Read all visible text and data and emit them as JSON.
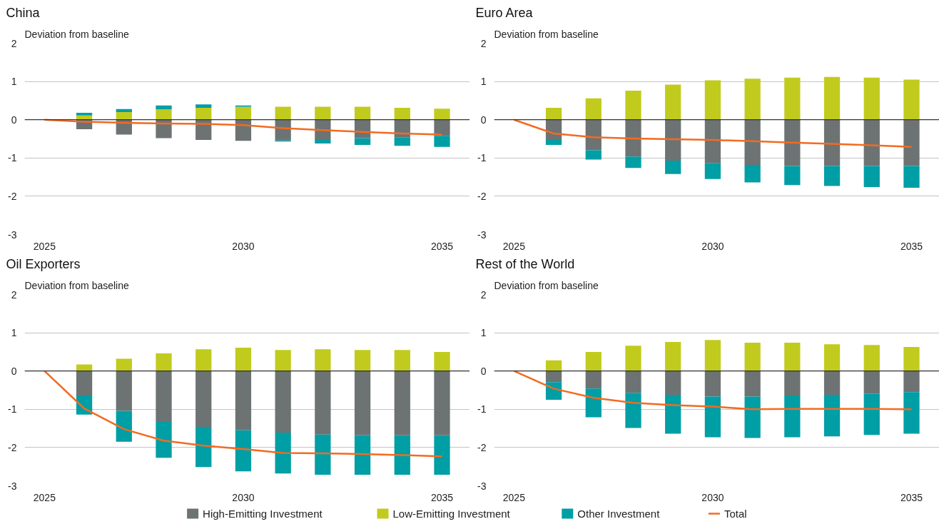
{
  "chart_data": [
    {
      "type": "bar",
      "stacked": true,
      "title": "China",
      "ylabel": "Deviation from baseline",
      "xlim": [
        2024.5,
        2035.7
      ],
      "xticks": [
        2025,
        2030,
        2035
      ],
      "ylim": [
        -3,
        2
      ],
      "yticks": [
        -3,
        -2,
        -1,
        0,
        1,
        2
      ],
      "grid": "y",
      "legend": "bottom",
      "ref_lines": [
        {
          "axis": "y",
          "value": 0,
          "color": "#333333"
        }
      ],
      "series": [
        {
          "name": "High-Emitting Investment",
          "color": "#6d7373",
          "x": [
            2026,
            2027,
            2028,
            2029,
            2030,
            2031,
            2032,
            2033,
            2034,
            2035
          ],
          "values": [
            -0.25,
            -0.39,
            -0.48,
            -0.53,
            -0.55,
            -0.54,
            -0.51,
            -0.48,
            -0.46,
            -0.42
          ]
        },
        {
          "name": "Low-Emitting Investment",
          "color": "#c1cb1e",
          "x": [
            2026,
            2027,
            2028,
            2029,
            2030,
            2031,
            2032,
            2033,
            2034,
            2035
          ],
          "values": [
            0.11,
            0.2,
            0.27,
            0.31,
            0.34,
            0.34,
            0.34,
            0.34,
            0.31,
            0.29
          ]
        },
        {
          "name": "Other Investment",
          "color": "#009ea5",
          "x": [
            2026,
            2027,
            2028,
            2029,
            2030,
            2031,
            2032,
            2033,
            2034,
            2035
          ],
          "values": [
            0.07,
            0.08,
            0.1,
            0.09,
            0.03,
            -0.03,
            -0.11,
            -0.18,
            -0.22,
            -0.29
          ]
        },
        {
          "name": "Total",
          "type": "line",
          "color": "#f26b21",
          "x": [
            2025,
            2026,
            2027,
            2028,
            2029,
            2030,
            2031,
            2032,
            2033,
            2034,
            2035
          ],
          "values": [
            0,
            -0.05,
            -0.08,
            -0.1,
            -0.11,
            -0.14,
            -0.22,
            -0.27,
            -0.32,
            -0.36,
            -0.39
          ]
        }
      ]
    },
    {
      "type": "bar",
      "stacked": true,
      "title": "Euro Area",
      "ylabel": "Deviation from baseline",
      "xlim": [
        2024.5,
        2035.7
      ],
      "xticks": [
        2025,
        2030,
        2035
      ],
      "ylim": [
        -3,
        2
      ],
      "yticks": [
        -3,
        -2,
        -1,
        0,
        1,
        2
      ],
      "grid": "y",
      "ref_lines": [
        {
          "axis": "y",
          "value": 0,
          "color": "#333333"
        }
      ],
      "series": [
        {
          "color": "#6d7373",
          "x": [
            2026,
            2027,
            2028,
            2029,
            2030,
            2031,
            2032,
            2033,
            2034,
            2035
          ],
          "values": [
            -0.51,
            -0.8,
            -0.96,
            -1.07,
            -1.13,
            -1.18,
            -1.21,
            -1.21,
            -1.21,
            -1.21
          ]
        },
        {
          "color": "#c1cb1e",
          "x": [
            2026,
            2027,
            2028,
            2029,
            2030,
            2031,
            2032,
            2033,
            2034,
            2035
          ],
          "values": [
            0.31,
            0.56,
            0.76,
            0.92,
            1.03,
            1.07,
            1.1,
            1.12,
            1.1,
            1.05
          ]
        },
        {
          "color": "#009ea5",
          "x": [
            2026,
            2027,
            2028,
            2029,
            2030,
            2031,
            2032,
            2033,
            2034,
            2035
          ],
          "values": [
            -0.15,
            -0.24,
            -0.3,
            -0.35,
            -0.42,
            -0.46,
            -0.5,
            -0.52,
            -0.55,
            -0.57
          ]
        },
        {
          "type": "line",
          "color": "#f26b21",
          "x": [
            2025,
            2026,
            2027,
            2028,
            2029,
            2030,
            2031,
            2032,
            2033,
            2034,
            2035
          ],
          "values": [
            0,
            -0.36,
            -0.46,
            -0.49,
            -0.51,
            -0.53,
            -0.56,
            -0.6,
            -0.63,
            -0.67,
            -0.71
          ]
        }
      ]
    },
    {
      "type": "bar",
      "stacked": true,
      "title": "Oil Exporters",
      "ylabel": "Deviation from baseline",
      "xlim": [
        2024.5,
        2035.7
      ],
      "xticks": [
        2025,
        2030,
        2035
      ],
      "ylim": [
        -3,
        2
      ],
      "yticks": [
        -3,
        -2,
        -1,
        0,
        1,
        2
      ],
      "grid": "y",
      "ref_lines": [
        {
          "axis": "y",
          "value": 0,
          "color": "#333333"
        }
      ],
      "series": [
        {
          "color": "#6d7373",
          "x": [
            2026,
            2027,
            2028,
            2029,
            2030,
            2031,
            2032,
            2033,
            2034,
            2035
          ],
          "values": [
            -0.64,
            -1.04,
            -1.31,
            -1.46,
            -1.55,
            -1.61,
            -1.66,
            -1.68,
            -1.68,
            -1.68
          ]
        },
        {
          "color": "#c1cb1e",
          "x": [
            2026,
            2027,
            2028,
            2029,
            2030,
            2031,
            2032,
            2033,
            2034,
            2035
          ],
          "values": [
            0.17,
            0.32,
            0.46,
            0.57,
            0.61,
            0.55,
            0.57,
            0.55,
            0.55,
            0.5
          ]
        },
        {
          "color": "#009ea5",
          "x": [
            2026,
            2027,
            2028,
            2029,
            2030,
            2031,
            2032,
            2033,
            2034,
            2035
          ],
          "values": [
            -0.5,
            -0.81,
            -0.96,
            -1.05,
            -1.07,
            -1.07,
            -1.05,
            -1.03,
            -1.03,
            -1.03
          ]
        },
        {
          "type": "line",
          "color": "#f26b21",
          "x": [
            2025,
            2026,
            2027,
            2028,
            2029,
            2030,
            2031,
            2032,
            2033,
            2034,
            2035
          ],
          "values": [
            0,
            -0.98,
            -1.52,
            -1.82,
            -1.95,
            -2.04,
            -2.14,
            -2.15,
            -2.17,
            -2.2,
            -2.23
          ]
        }
      ]
    },
    {
      "type": "bar",
      "stacked": true,
      "title": "Rest of the World",
      "ylabel": "Deviation from baseline",
      "xlim": [
        2024.5,
        2035.7
      ],
      "xticks": [
        2025,
        2030,
        2035
      ],
      "ylim": [
        -3,
        2
      ],
      "yticks": [
        -3,
        -2,
        -1,
        0,
        1,
        2
      ],
      "grid": "y",
      "ref_lines": [
        {
          "axis": "y",
          "value": 0,
          "color": "#333333"
        }
      ],
      "series": [
        {
          "color": "#6d7373",
          "x": [
            2026,
            2027,
            2028,
            2029,
            2030,
            2031,
            2032,
            2033,
            2034,
            2035
          ],
          "values": [
            -0.29,
            -0.46,
            -0.57,
            -0.62,
            -0.67,
            -0.67,
            -0.64,
            -0.62,
            -0.6,
            -0.55
          ]
        },
        {
          "color": "#c1cb1e",
          "x": [
            2026,
            2027,
            2028,
            2029,
            2030,
            2031,
            2032,
            2033,
            2034,
            2035
          ],
          "values": [
            0.28,
            0.5,
            0.66,
            0.76,
            0.81,
            0.74,
            0.74,
            0.7,
            0.68,
            0.63
          ]
        },
        {
          "color": "#009ea5",
          "x": [
            2026,
            2027,
            2028,
            2029,
            2030,
            2031,
            2032,
            2033,
            2034,
            2035
          ],
          "values": [
            -0.46,
            -0.75,
            -0.92,
            -1.02,
            -1.06,
            -1.08,
            -1.09,
            -1.09,
            -1.07,
            -1.09
          ]
        },
        {
          "type": "line",
          "color": "#f26b21",
          "x": [
            2025,
            2026,
            2027,
            2028,
            2029,
            2030,
            2031,
            2032,
            2033,
            2034,
            2035
          ],
          "values": [
            0,
            -0.46,
            -0.7,
            -0.83,
            -0.89,
            -0.93,
            -1.0,
            -0.99,
            -0.99,
            -0.99,
            -1.0
          ]
        }
      ]
    }
  ]
}
